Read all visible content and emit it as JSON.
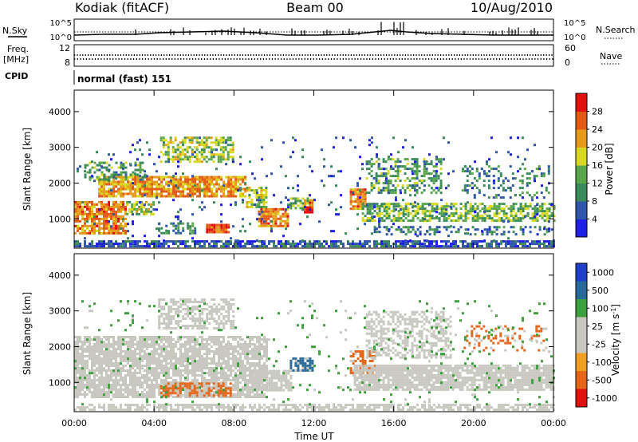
{
  "header": {
    "station": "Kodiak (fitACF)",
    "beam": "Beam 00",
    "date": "10/Aug/2010"
  },
  "status_panel": {
    "nsky_label": "N.Sky",
    "nsearch_label": "N.Search",
    "freq_label": "Freq.",
    "freq_unit": "[MHz]",
    "nave_label": "Nave",
    "cpid_label": "CPID",
    "cpid_value": "normal (fast) 151",
    "noise_ticks": [
      "10^5",
      "10^0"
    ],
    "freq_ticks": [
      "12",
      "8"
    ],
    "nave_ticks": [
      "60",
      "0"
    ]
  },
  "colors": {
    "power": [
      "#1f1fe6",
      "#2f56a8",
      "#3c8a5c",
      "#5aa64a",
      "#d8d820",
      "#e59a1a",
      "#e35a14",
      "#e01010"
    ],
    "velocity": [
      "#e01010",
      "#e5661a",
      "#f0a020",
      "#c8c8c0",
      "#c8c8c0",
      "#3ca03c",
      "#2a6a9a",
      "#1f3fc8"
    ],
    "ground_scatter": "#c8c8c0"
  },
  "chart_data": [
    {
      "type": "heatmap",
      "name": "power",
      "ylabel": "Slant Range [km]",
      "xlabel": "",
      "x_ticks": [
        "00:00",
        "04:00",
        "08:00",
        "12:00",
        "16:00",
        "20:00",
        "00:00"
      ],
      "xlim_hours": [
        0,
        24
      ],
      "y_ticks": [
        1000,
        2000,
        3000,
        4000
      ],
      "ylim": [
        180,
        4600
      ],
      "colorbar_label": "Power [dB]",
      "colorbar_ticks": [
        4,
        8,
        12,
        16,
        20,
        24,
        28
      ],
      "colorbar_range": [
        0,
        32
      ],
      "regions": [
        {
          "t0": 0.0,
          "t1": 24.0,
          "r0": 200,
          "r1": 400,
          "value": 6,
          "density": 0.75
        },
        {
          "t0": 0.0,
          "t1": 2.6,
          "r0": 600,
          "r1": 1500,
          "value": 24,
          "density": 0.8
        },
        {
          "t0": 2.6,
          "t1": 4.0,
          "r0": 1100,
          "r1": 1500,
          "value": 16,
          "density": 0.7
        },
        {
          "t0": 1.2,
          "t1": 8.6,
          "r0": 1650,
          "r1": 2200,
          "value": 22,
          "density": 0.85
        },
        {
          "t0": 8.6,
          "t1": 9.6,
          "r0": 1300,
          "r1": 1900,
          "value": 16,
          "density": 0.6
        },
        {
          "t0": 4.2,
          "t1": 6.0,
          "r0": 600,
          "r1": 900,
          "value": 10,
          "density": 0.5
        },
        {
          "t0": 6.6,
          "t1": 7.7,
          "r0": 640,
          "r1": 860,
          "value": 28,
          "density": 0.95
        },
        {
          "t0": 0.5,
          "t1": 3.6,
          "r0": 2100,
          "r1": 2600,
          "value": 12,
          "density": 0.45
        },
        {
          "t0": 4.3,
          "t1": 7.9,
          "r0": 2600,
          "r1": 3300,
          "value": 16,
          "density": 0.55
        },
        {
          "t0": 9.2,
          "t1": 10.7,
          "r0": 800,
          "r1": 1300,
          "value": 24,
          "density": 0.85
        },
        {
          "t0": 10.8,
          "t1": 11.8,
          "r0": 1300,
          "r1": 1600,
          "value": 14,
          "density": 0.55
        },
        {
          "t0": 11.5,
          "t1": 11.9,
          "r0": 1150,
          "r1": 1550,
          "value": 26,
          "density": 0.8
        },
        {
          "t0": 13.8,
          "t1": 14.6,
          "r0": 1300,
          "r1": 1850,
          "value": 24,
          "density": 0.8
        },
        {
          "t0": 14.4,
          "t1": 24.0,
          "r0": 950,
          "r1": 1450,
          "value": 14,
          "density": 0.65
        },
        {
          "t0": 15.0,
          "t1": 24.0,
          "r0": 550,
          "r1": 800,
          "value": 8,
          "density": 0.35
        },
        {
          "t0": 14.6,
          "t1": 18.4,
          "r0": 1700,
          "r1": 2700,
          "value": 12,
          "density": 0.4
        },
        {
          "t0": 19.4,
          "t1": 23.8,
          "r0": 1600,
          "r1": 2500,
          "value": 10,
          "density": 0.22
        },
        {
          "t0": 0.0,
          "t1": 24.0,
          "r0": 400,
          "r1": 3300,
          "value": 6,
          "density": 0.04
        }
      ]
    },
    {
      "type": "heatmap",
      "name": "velocity",
      "ylabel": "Slant Range [km]",
      "xlabel": "Time UT",
      "x_ticks": [
        "00:00",
        "04:00",
        "08:00",
        "12:00",
        "16:00",
        "20:00",
        "00:00"
      ],
      "xlim_hours": [
        0,
        24
      ],
      "y_ticks": [
        1000,
        2000,
        3000,
        4000
      ],
      "ylim": [
        180,
        4600
      ],
      "colorbar_label": "Velocity [m s^-1]",
      "colorbar_ticks": [
        "1000",
        "500",
        "100",
        "25",
        "-25",
        "-100",
        "-500",
        "-1000"
      ],
      "regions": [
        {
          "t0": 0.0,
          "t1": 24.0,
          "r0": 200,
          "r1": 400,
          "value": "ground",
          "density": 0.7
        },
        {
          "t0": 0.0,
          "t1": 9.6,
          "r0": 600,
          "r1": 2300,
          "value": "ground",
          "density": 0.8
        },
        {
          "t0": 4.2,
          "t1": 8.0,
          "r0": 2500,
          "r1": 3350,
          "value": "ground",
          "density": 0.6
        },
        {
          "t0": 4.3,
          "t1": 7.8,
          "r0": 650,
          "r1": 1000,
          "value": -100,
          "density": 0.7
        },
        {
          "t0": 9.0,
          "t1": 10.8,
          "r0": 750,
          "r1": 1350,
          "value": "ground",
          "density": 0.85
        },
        {
          "t0": 10.8,
          "t1": 11.9,
          "r0": 1300,
          "r1": 1700,
          "value": 120,
          "density": 0.7
        },
        {
          "t0": 13.8,
          "t1": 15.0,
          "r0": 1200,
          "r1": 1900,
          "value": -120,
          "density": 0.6
        },
        {
          "t0": 14.0,
          "t1": 24.0,
          "r0": 800,
          "r1": 1500,
          "value": "ground",
          "density": 0.85
        },
        {
          "t0": 14.6,
          "t1": 18.8,
          "r0": 1700,
          "r1": 3000,
          "value": "ground",
          "density": 0.5
        },
        {
          "t0": 19.5,
          "t1": 23.6,
          "r0": 1900,
          "r1": 2600,
          "value": -300,
          "density": 0.25
        },
        {
          "t0": 0.0,
          "t1": 24.0,
          "r0": 400,
          "r1": 3300,
          "value": 50,
          "density": 0.04
        }
      ]
    }
  ]
}
